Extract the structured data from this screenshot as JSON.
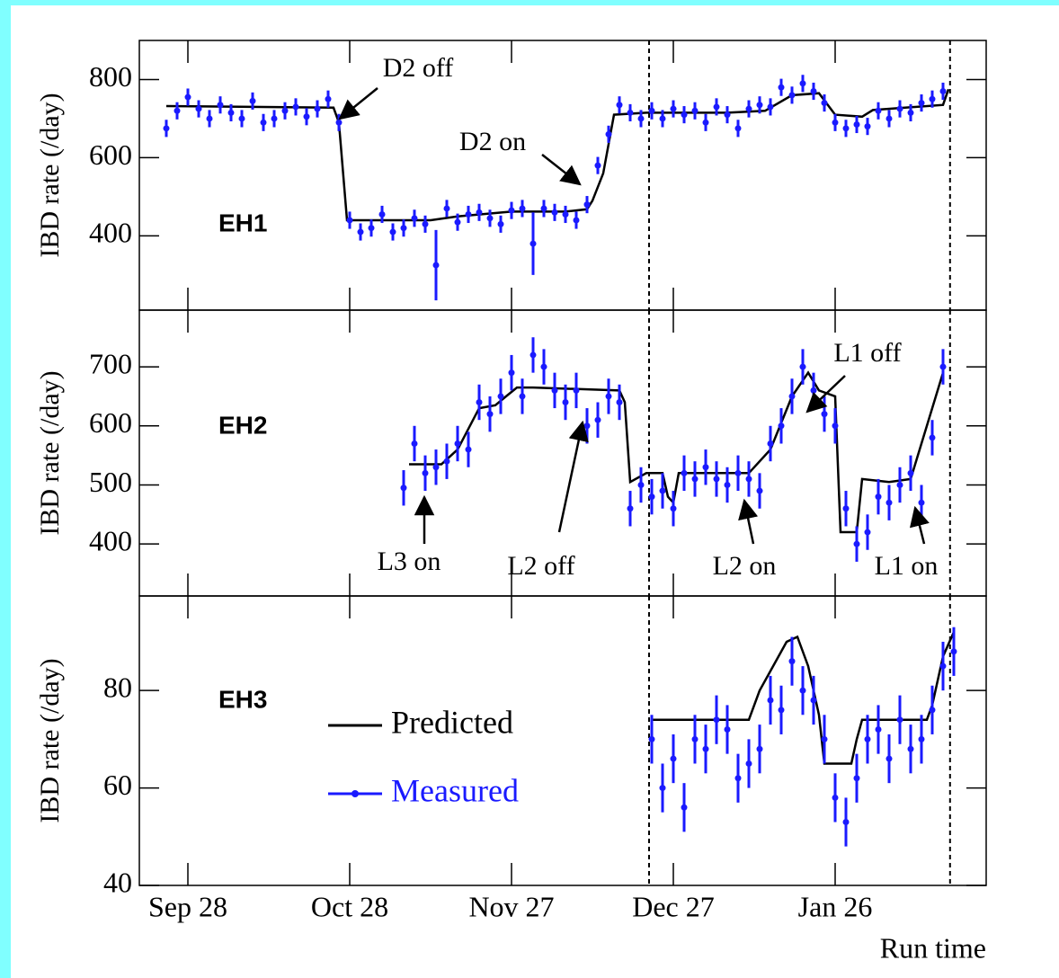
{
  "chart_data": [
    {
      "type": "line",
      "panel_label": "EH1",
      "ylabel": "IBD rate (/day)",
      "xlim": [
        -9,
        148
      ],
      "xticks": [
        0,
        30,
        60,
        90,
        120
      ],
      "ylim": [
        210,
        900
      ],
      "yticks": [
        400,
        600,
        800
      ],
      "vlines": [
        85.5,
        141.3
      ],
      "annotations": [
        "D2 off",
        "D2 on"
      ],
      "series": [
        {
          "name": "Predicted",
          "color": "#000000",
          "x": [
            -4,
            27,
            28,
            29.5,
            45,
            50,
            60,
            70,
            74,
            75,
            77,
            79,
            85,
            100,
            107,
            112,
            117,
            120,
            125,
            127,
            140,
            141
          ],
          "values": [
            732,
            728,
            690,
            440,
            440,
            450,
            462,
            462,
            468,
            490,
            560,
            710,
            715,
            715,
            720,
            760,
            765,
            710,
            705,
            722,
            735,
            775
          ]
        },
        {
          "name": "Measured",
          "color": "#1a1aff",
          "x": [
            -4,
            -2,
            0,
            2,
            4,
            6,
            8,
            10,
            12,
            14,
            16,
            18,
            20,
            22,
            24,
            26,
            28,
            30,
            32,
            34,
            36,
            38,
            40,
            42,
            44,
            46,
            48,
            50,
            52,
            54,
            56,
            58,
            60,
            62,
            64,
            66,
            68,
            70,
            72,
            74,
            76,
            78,
            80,
            82,
            84,
            86,
            88,
            90,
            92,
            94,
            96,
            98,
            100,
            102,
            104,
            106,
            108,
            110,
            112,
            114,
            116,
            118,
            120,
            122,
            124,
            126,
            128,
            130,
            132,
            134,
            136,
            138,
            140
          ],
          "values": [
            675,
            720,
            755,
            725,
            700,
            735,
            715,
            700,
            745,
            690,
            700,
            720,
            730,
            705,
            725,
            750,
            690,
            440,
            410,
            420,
            455,
            410,
            420,
            445,
            430,
            325,
            470,
            435,
            455,
            460,
            445,
            430,
            465,
            470,
            380,
            470,
            460,
            455,
            440,
            480,
            580,
            660,
            735,
            715,
            700,
            720,
            700,
            725,
            710,
            720,
            690,
            730,
            710,
            675,
            725,
            735,
            730,
            780,
            760,
            790,
            770,
            740,
            690,
            675,
            685,
            680,
            720,
            700,
            725,
            715,
            740,
            750,
            770
          ],
          "errors": [
            22,
            22,
            22,
            22,
            22,
            22,
            22,
            22,
            22,
            22,
            22,
            22,
            22,
            22,
            22,
            22,
            22,
            22,
            22,
            22,
            22,
            22,
            22,
            22,
            22,
            90,
            22,
            22,
            22,
            22,
            22,
            22,
            22,
            22,
            80,
            22,
            22,
            22,
            22,
            22,
            22,
            22,
            22,
            22,
            22,
            22,
            22,
            22,
            22,
            22,
            22,
            22,
            22,
            22,
            22,
            22,
            22,
            22,
            22,
            22,
            22,
            22,
            22,
            22,
            22,
            22,
            22,
            22,
            22,
            22,
            22,
            22,
            22
          ]
        }
      ]
    },
    {
      "type": "line",
      "panel_label": "EH2",
      "ylabel": "IBD rate (/day)",
      "xlim": [
        -9,
        148
      ],
      "xticks": [
        0,
        30,
        60,
        90,
        120
      ],
      "ylim": [
        312,
        796
      ],
      "yticks": [
        400,
        500,
        600,
        700
      ],
      "vlines": [
        85.5,
        141.3
      ],
      "annotations": [
        "L1 off",
        "L3 on",
        "L2 off",
        "L2 on",
        "L1 on"
      ],
      "series": [
        {
          "name": "Predicted",
          "color": "#000000",
          "x": [
            41,
            47,
            50,
            54,
            57,
            59,
            61,
            64,
            80,
            81,
            82,
            85,
            88,
            89,
            90,
            91,
            101,
            104,
            108,
            112,
            115,
            117,
            120,
            121,
            124,
            125,
            130,
            134,
            140
          ],
          "values": [
            535,
            535,
            560,
            630,
            635,
            650,
            665,
            665,
            660,
            640,
            505,
            520,
            520,
            480,
            470,
            520,
            520,
            520,
            560,
            650,
            690,
            660,
            650,
            420,
            420,
            510,
            505,
            510,
            690
          ]
        },
        {
          "name": "Measured",
          "color": "#1a1aff",
          "x": [
            40,
            42,
            44,
            46,
            48,
            50,
            52,
            54,
            56,
            58,
            60,
            62,
            64,
            66,
            68,
            70,
            72,
            74,
            76,
            78,
            80,
            82,
            84,
            86,
            88,
            90,
            92,
            94,
            96,
            98,
            100,
            102,
            104,
            106,
            108,
            110,
            112,
            114,
            116,
            118,
            120,
            122,
            124,
            126,
            128,
            130,
            132,
            134,
            136,
            138,
            140
          ],
          "values": [
            495,
            570,
            520,
            530,
            540,
            570,
            560,
            640,
            620,
            650,
            690,
            650,
            720,
            700,
            660,
            640,
            660,
            600,
            610,
            650,
            640,
            460,
            500,
            480,
            490,
            460,
            520,
            510,
            530,
            510,
            500,
            520,
            510,
            490,
            570,
            600,
            650,
            700,
            660,
            620,
            600,
            460,
            400,
            420,
            480,
            470,
            500,
            520,
            470,
            580,
            700
          ],
          "errors": [
            30,
            30,
            30,
            30,
            30,
            30,
            30,
            30,
            30,
            30,
            30,
            30,
            30,
            30,
            30,
            30,
            30,
            30,
            30,
            30,
            30,
            30,
            30,
            30,
            30,
            30,
            30,
            30,
            30,
            30,
            30,
            30,
            30,
            30,
            30,
            30,
            30,
            30,
            30,
            30,
            30,
            30,
            30,
            30,
            30,
            30,
            30,
            30,
            30,
            30,
            30
          ]
        }
      ]
    },
    {
      "type": "line",
      "panel_label": "EH3",
      "ylabel": "IBD rate (/day)",
      "xlabel": "Run time",
      "xlim": [
        -9,
        148
      ],
      "xticks": [
        {
          "value": 0,
          "label": "Sep 28"
        },
        {
          "value": 30,
          "label": "Oct 28"
        },
        {
          "value": 60,
          "label": "Nov 27"
        },
        {
          "value": 90,
          "label": "Dec 27"
        },
        {
          "value": 120,
          "label": "Jan 26"
        }
      ],
      "ylim": [
        40,
        99.4
      ],
      "yticks": [
        40,
        60,
        80
      ],
      "vlines": [
        85.5,
        141.3
      ],
      "series": [
        {
          "name": "Predicted",
          "color": "#000000",
          "x": [
            86,
            100,
            104,
            106,
            108,
            111,
            113,
            115,
            117,
            118,
            123,
            124,
            125,
            128,
            132,
            137,
            138,
            140,
            142
          ],
          "values": [
            74,
            74,
            74,
            80,
            84,
            90,
            91,
            85,
            75,
            65,
            65,
            70,
            74,
            74,
            74,
            74,
            77,
            87,
            92
          ]
        },
        {
          "name": "Measured",
          "color": "#1a1aff",
          "x": [
            86,
            88,
            90,
            92,
            94,
            96,
            98,
            100,
            102,
            104,
            106,
            108,
            110,
            112,
            114,
            116,
            118,
            120,
            122,
            124,
            126,
            128,
            130,
            132,
            134,
            136,
            138,
            140,
            142
          ],
          "values": [
            70,
            60,
            66,
            56,
            70,
            68,
            74,
            72,
            62,
            65,
            68,
            78,
            76,
            86,
            80,
            78,
            70,
            58,
            53,
            62,
            70,
            72,
            66,
            74,
            68,
            70,
            76,
            85,
            88
          ],
          "errors": [
            5,
            5,
            5,
            5,
            5,
            5,
            5,
            5,
            5,
            5,
            5,
            5,
            5,
            5,
            5,
            5,
            5,
            5,
            5,
            5,
            5,
            5,
            5,
            5,
            5,
            5,
            5,
            5,
            5
          ]
        }
      ]
    }
  ]
}
